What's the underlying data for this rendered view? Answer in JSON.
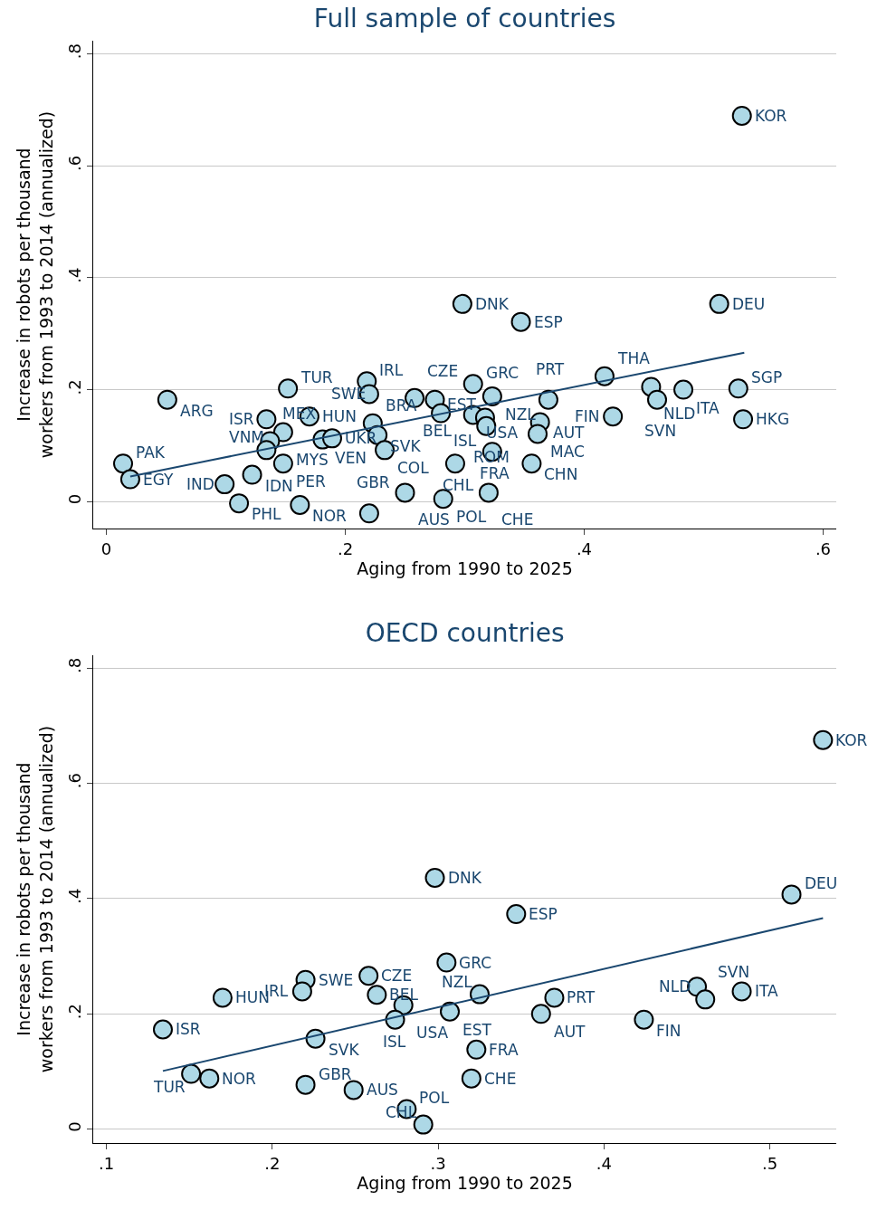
{
  "chart_data": [
    {
      "type": "scatter",
      "title": "Full sample of countries",
      "xlabel": "Aging from 1990 to 2025",
      "ylabel": "Increase in robots per thousand\nworkers from 1993 to 2014 (annualized)",
      "xlim": [
        -0.011,
        0.611
      ],
      "ylim": [
        -0.048,
        0.823
      ],
      "xticks": [
        {
          "value": 0,
          "label": "0"
        },
        {
          "value": 0.2,
          "label": ".2"
        },
        {
          "value": 0.4,
          "label": ".4"
        },
        {
          "value": 0.6,
          "label": ".6"
        }
      ],
      "yticks": [
        {
          "value": 0,
          "label": "0"
        },
        {
          "value": 0.2,
          "label": ".2"
        },
        {
          "value": 0.4,
          "label": ".4"
        },
        {
          "value": 0.6,
          "label": ".6"
        },
        {
          "value": 0.8,
          "label": ".8"
        }
      ],
      "grid": "y",
      "series": [
        {
          "type": "scatter",
          "color": "#add8e6",
          "marker": "circle",
          "x": [
            0.532,
            0.513,
            0.298,
            0.347,
            0.417,
            0.456,
            0.483,
            0.461,
            0.529,
            0.533,
            0.424,
            0.051,
            0.152,
            0.014,
            0.02,
            0.099,
            0.111,
            0.162,
            0.22,
            0.122,
            0.134,
            0.17,
            0.148,
            0.137,
            0.134,
            0.148,
            0.181,
            0.189,
            0.223,
            0.227,
            0.233,
            0.218,
            0.22,
            0.258,
            0.275,
            0.28,
            0.307,
            0.323,
            0.307,
            0.317,
            0.318,
            0.37,
            0.363,
            0.361,
            0.323,
            0.356,
            0.292,
            0.25,
            0.282,
            0.32
          ],
          "values": [
            0.689,
            0.353,
            0.353,
            0.321,
            0.224,
            0.205,
            0.2,
            0.182,
            0.202,
            0.147,
            0.152,
            0.182,
            0.202,
            0.068,
            0.04,
            0.031,
            -0.003,
            -0.006,
            -0.021,
            0.048,
            0.147,
            0.152,
            0.124,
            0.108,
            0.092,
            0.068,
            0.111,
            0.113,
            0.14,
            0.119,
            0.092,
            0.215,
            0.192,
            0.185,
            0.182,
            0.158,
            0.21,
            0.188,
            0.155,
            0.15,
            0.135,
            0.182,
            0.142,
            0.121,
            0.089,
            0.068,
            0.068,
            0.016,
            0.005,
            0.016
          ]
        },
        {
          "type": "line",
          "color": "#1a476f",
          "x": [
            0.02,
            0.534
          ],
          "values": [
            0.045,
            0.266
          ]
        }
      ],
      "annotations": [
        {
          "text": "KOR",
          "x": 0.532,
          "y": 0.689
        },
        {
          "text": "DEU",
          "x": 0.513,
          "y": 0.353
        },
        {
          "text": "DNK",
          "x": 0.298,
          "y": 0.353
        },
        {
          "text": "ESP",
          "x": 0.347,
          "y": 0.321
        },
        {
          "text": "THA",
          "x": 0.417,
          "y": 0.224
        },
        {
          "text": "NLD",
          "x": 0.456,
          "y": 0.205
        },
        {
          "text": "ITA",
          "x": 0.483,
          "y": 0.2
        },
        {
          "text": "SVN",
          "x": 0.461,
          "y": 0.182
        },
        {
          "text": "SGP",
          "x": 0.529,
          "y": 0.202
        },
        {
          "text": "HKG",
          "x": 0.533,
          "y": 0.147
        },
        {
          "text": "FIN",
          "x": 0.424,
          "y": 0.152
        },
        {
          "text": "ARG",
          "x": 0.051,
          "y": 0.182
        },
        {
          "text": "TUR",
          "x": 0.152,
          "y": 0.202
        },
        {
          "text": "PAK",
          "x": 0.014,
          "y": 0.068
        },
        {
          "text": "EGY",
          "x": 0.02,
          "y": 0.04
        },
        {
          "text": "IND",
          "x": 0.099,
          "y": 0.031
        },
        {
          "text": "PHL",
          "x": 0.111,
          "y": -0.003
        },
        {
          "text": "NOR",
          "x": 0.162,
          "y": -0.006
        },
        {
          "text": "GBR",
          "x": 0.22,
          "y": -0.021
        },
        {
          "text": "IDN",
          "x": 0.122,
          "y": 0.048
        },
        {
          "text": "ISR",
          "x": 0.134,
          "y": 0.147
        },
        {
          "text": "HUN",
          "x": 0.17,
          "y": 0.152
        },
        {
          "text": "MYS",
          "x": 0.148,
          "y": 0.124
        },
        {
          "text": "MEX",
          "x": 0.137,
          "y": 0.108
        },
        {
          "text": "VNM",
          "x": 0.134,
          "y": 0.092
        },
        {
          "text": "PER",
          "x": 0.148,
          "y": 0.068
        },
        {
          "text": "VEN",
          "x": 0.181,
          "y": 0.111
        },
        {
          "text": "UKR",
          "x": 0.189,
          "y": 0.113
        },
        {
          "text": "BRA",
          "x": 0.223,
          "y": 0.14
        },
        {
          "text": "SVK",
          "x": 0.227,
          "y": 0.119
        },
        {
          "text": "COL",
          "x": 0.233,
          "y": 0.092
        },
        {
          "text": "IRL",
          "x": 0.218,
          "y": 0.215
        },
        {
          "text": "SWE",
          "x": 0.22,
          "y": 0.192
        },
        {
          "text": "CZE",
          "x": 0.258,
          "y": 0.185
        },
        {
          "text": "BEL",
          "x": 0.275,
          "y": 0.182
        },
        {
          "text": "ISL",
          "x": 0.28,
          "y": 0.158
        },
        {
          "text": "GRC",
          "x": 0.307,
          "y": 0.21
        },
        {
          "text": "NZL",
          "x": 0.323,
          "y": 0.188
        },
        {
          "text": "USA",
          "x": 0.307,
          "y": 0.155
        },
        {
          "text": "EST",
          "x": 0.317,
          "y": 0.15
        },
        {
          "text": "ROM",
          "x": 0.318,
          "y": 0.135
        },
        {
          "text": "PRT",
          "x": 0.37,
          "y": 0.182
        },
        {
          "text": "AUT",
          "x": 0.363,
          "y": 0.142
        },
        {
          "text": "MAC",
          "x": 0.361,
          "y": 0.121
        },
        {
          "text": "FRA",
          "x": 0.323,
          "y": 0.089
        },
        {
          "text": "CHN",
          "x": 0.356,
          "y": 0.068
        },
        {
          "text": "CHL",
          "x": 0.292,
          "y": 0.068
        },
        {
          "text": "AUS",
          "x": 0.25,
          "y": 0.016
        },
        {
          "text": "POL",
          "x": 0.282,
          "y": 0.005
        },
        {
          "text": "CHE",
          "x": 0.32,
          "y": 0.016
        }
      ]
    },
    {
      "type": "scatter",
      "title": "OECD countries",
      "xlabel": "Aging from 1990 to 2025",
      "ylabel": "Increase in robots per thousand\nworkers from 1993 to 2014 (annualized)",
      "xlim": [
        0.092,
        0.54
      ],
      "ylim": [
        -0.024,
        0.822
      ],
      "xticks": [
        {
          "value": 0.1,
          "label": ".1"
        },
        {
          "value": 0.2,
          "label": ".2"
        },
        {
          "value": 0.3,
          "label": ".3"
        },
        {
          "value": 0.4,
          "label": ".4"
        },
        {
          "value": 0.5,
          "label": ".5"
        }
      ],
      "yticks": [
        {
          "value": 0,
          "label": "0"
        },
        {
          "value": 0.2,
          "label": ".2"
        },
        {
          "value": 0.4,
          "label": ".4"
        },
        {
          "value": 0.6,
          "label": ".6"
        },
        {
          "value": 0.8,
          "label": ".8"
        }
      ],
      "grid": "y",
      "series": [
        {
          "type": "scatter",
          "color": "#add8e6",
          "marker": "circle",
          "x": [
            0.532,
            0.513,
            0.298,
            0.347,
            0.305,
            0.22,
            0.258,
            0.218,
            0.263,
            0.17,
            0.279,
            0.274,
            0.307,
            0.325,
            0.37,
            0.362,
            0.456,
            0.461,
            0.483,
            0.424,
            0.134,
            0.226,
            0.323,
            0.32,
            0.151,
            0.162,
            0.22,
            0.249,
            0.281,
            0.291
          ],
          "values": [
            0.675,
            0.407,
            0.436,
            0.373,
            0.289,
            0.259,
            0.266,
            0.239,
            0.233,
            0.228,
            0.215,
            0.19,
            0.204,
            0.234,
            0.228,
            0.2,
            0.247,
            0.225,
            0.239,
            0.19,
            0.173,
            0.157,
            0.138,
            0.088,
            0.096,
            0.088,
            0.077,
            0.068,
            0.035,
            0.008
          ]
        },
        {
          "type": "line",
          "color": "#1a476f",
          "x": [
            0.134,
            0.532
          ],
          "values": [
            0.101,
            0.366
          ]
        }
      ],
      "annotations": [
        {
          "text": "KOR",
          "x": 0.532,
          "y": 0.675
        },
        {
          "text": "DEU",
          "x": 0.513,
          "y": 0.407
        },
        {
          "text": "DNK",
          "x": 0.298,
          "y": 0.436
        },
        {
          "text": "ESP",
          "x": 0.347,
          "y": 0.373
        },
        {
          "text": "GRC",
          "x": 0.305,
          "y": 0.289
        },
        {
          "text": "SWE",
          "x": 0.22,
          "y": 0.259
        },
        {
          "text": "CZE",
          "x": 0.258,
          "y": 0.266
        },
        {
          "text": "IRL",
          "x": 0.218,
          "y": 0.239
        },
        {
          "text": "BEL",
          "x": 0.263,
          "y": 0.233
        },
        {
          "text": "HUN",
          "x": 0.17,
          "y": 0.228
        },
        {
          "text": "USA",
          "x": 0.279,
          "y": 0.215
        },
        {
          "text": "ISL",
          "x": 0.274,
          "y": 0.19
        },
        {
          "text": "EST",
          "x": 0.307,
          "y": 0.204
        },
        {
          "text": "NZL",
          "x": 0.325,
          "y": 0.234
        },
        {
          "text": "PRT",
          "x": 0.37,
          "y": 0.228
        },
        {
          "text": "AUT",
          "x": 0.362,
          "y": 0.2
        },
        {
          "text": "NLD",
          "x": 0.456,
          "y": 0.247
        },
        {
          "text": "SVN",
          "x": 0.461,
          "y": 0.225
        },
        {
          "text": "ITA",
          "x": 0.483,
          "y": 0.239
        },
        {
          "text": "FIN",
          "x": 0.424,
          "y": 0.19
        },
        {
          "text": "ISR",
          "x": 0.134,
          "y": 0.173
        },
        {
          "text": "SVK",
          "x": 0.226,
          "y": 0.157
        },
        {
          "text": "FRA",
          "x": 0.323,
          "y": 0.138
        },
        {
          "text": "CHE",
          "x": 0.32,
          "y": 0.088
        },
        {
          "text": "TUR",
          "x": 0.151,
          "y": 0.096
        },
        {
          "text": "NOR",
          "x": 0.162,
          "y": 0.088
        },
        {
          "text": "GBR",
          "x": 0.22,
          "y": 0.077
        },
        {
          "text": "AUS",
          "x": 0.249,
          "y": 0.068
        },
        {
          "text": "POL",
          "x": 0.281,
          "y": 0.035
        },
        {
          "text": "CHL",
          "x": 0.291,
          "y": 0.008
        }
      ]
    }
  ]
}
